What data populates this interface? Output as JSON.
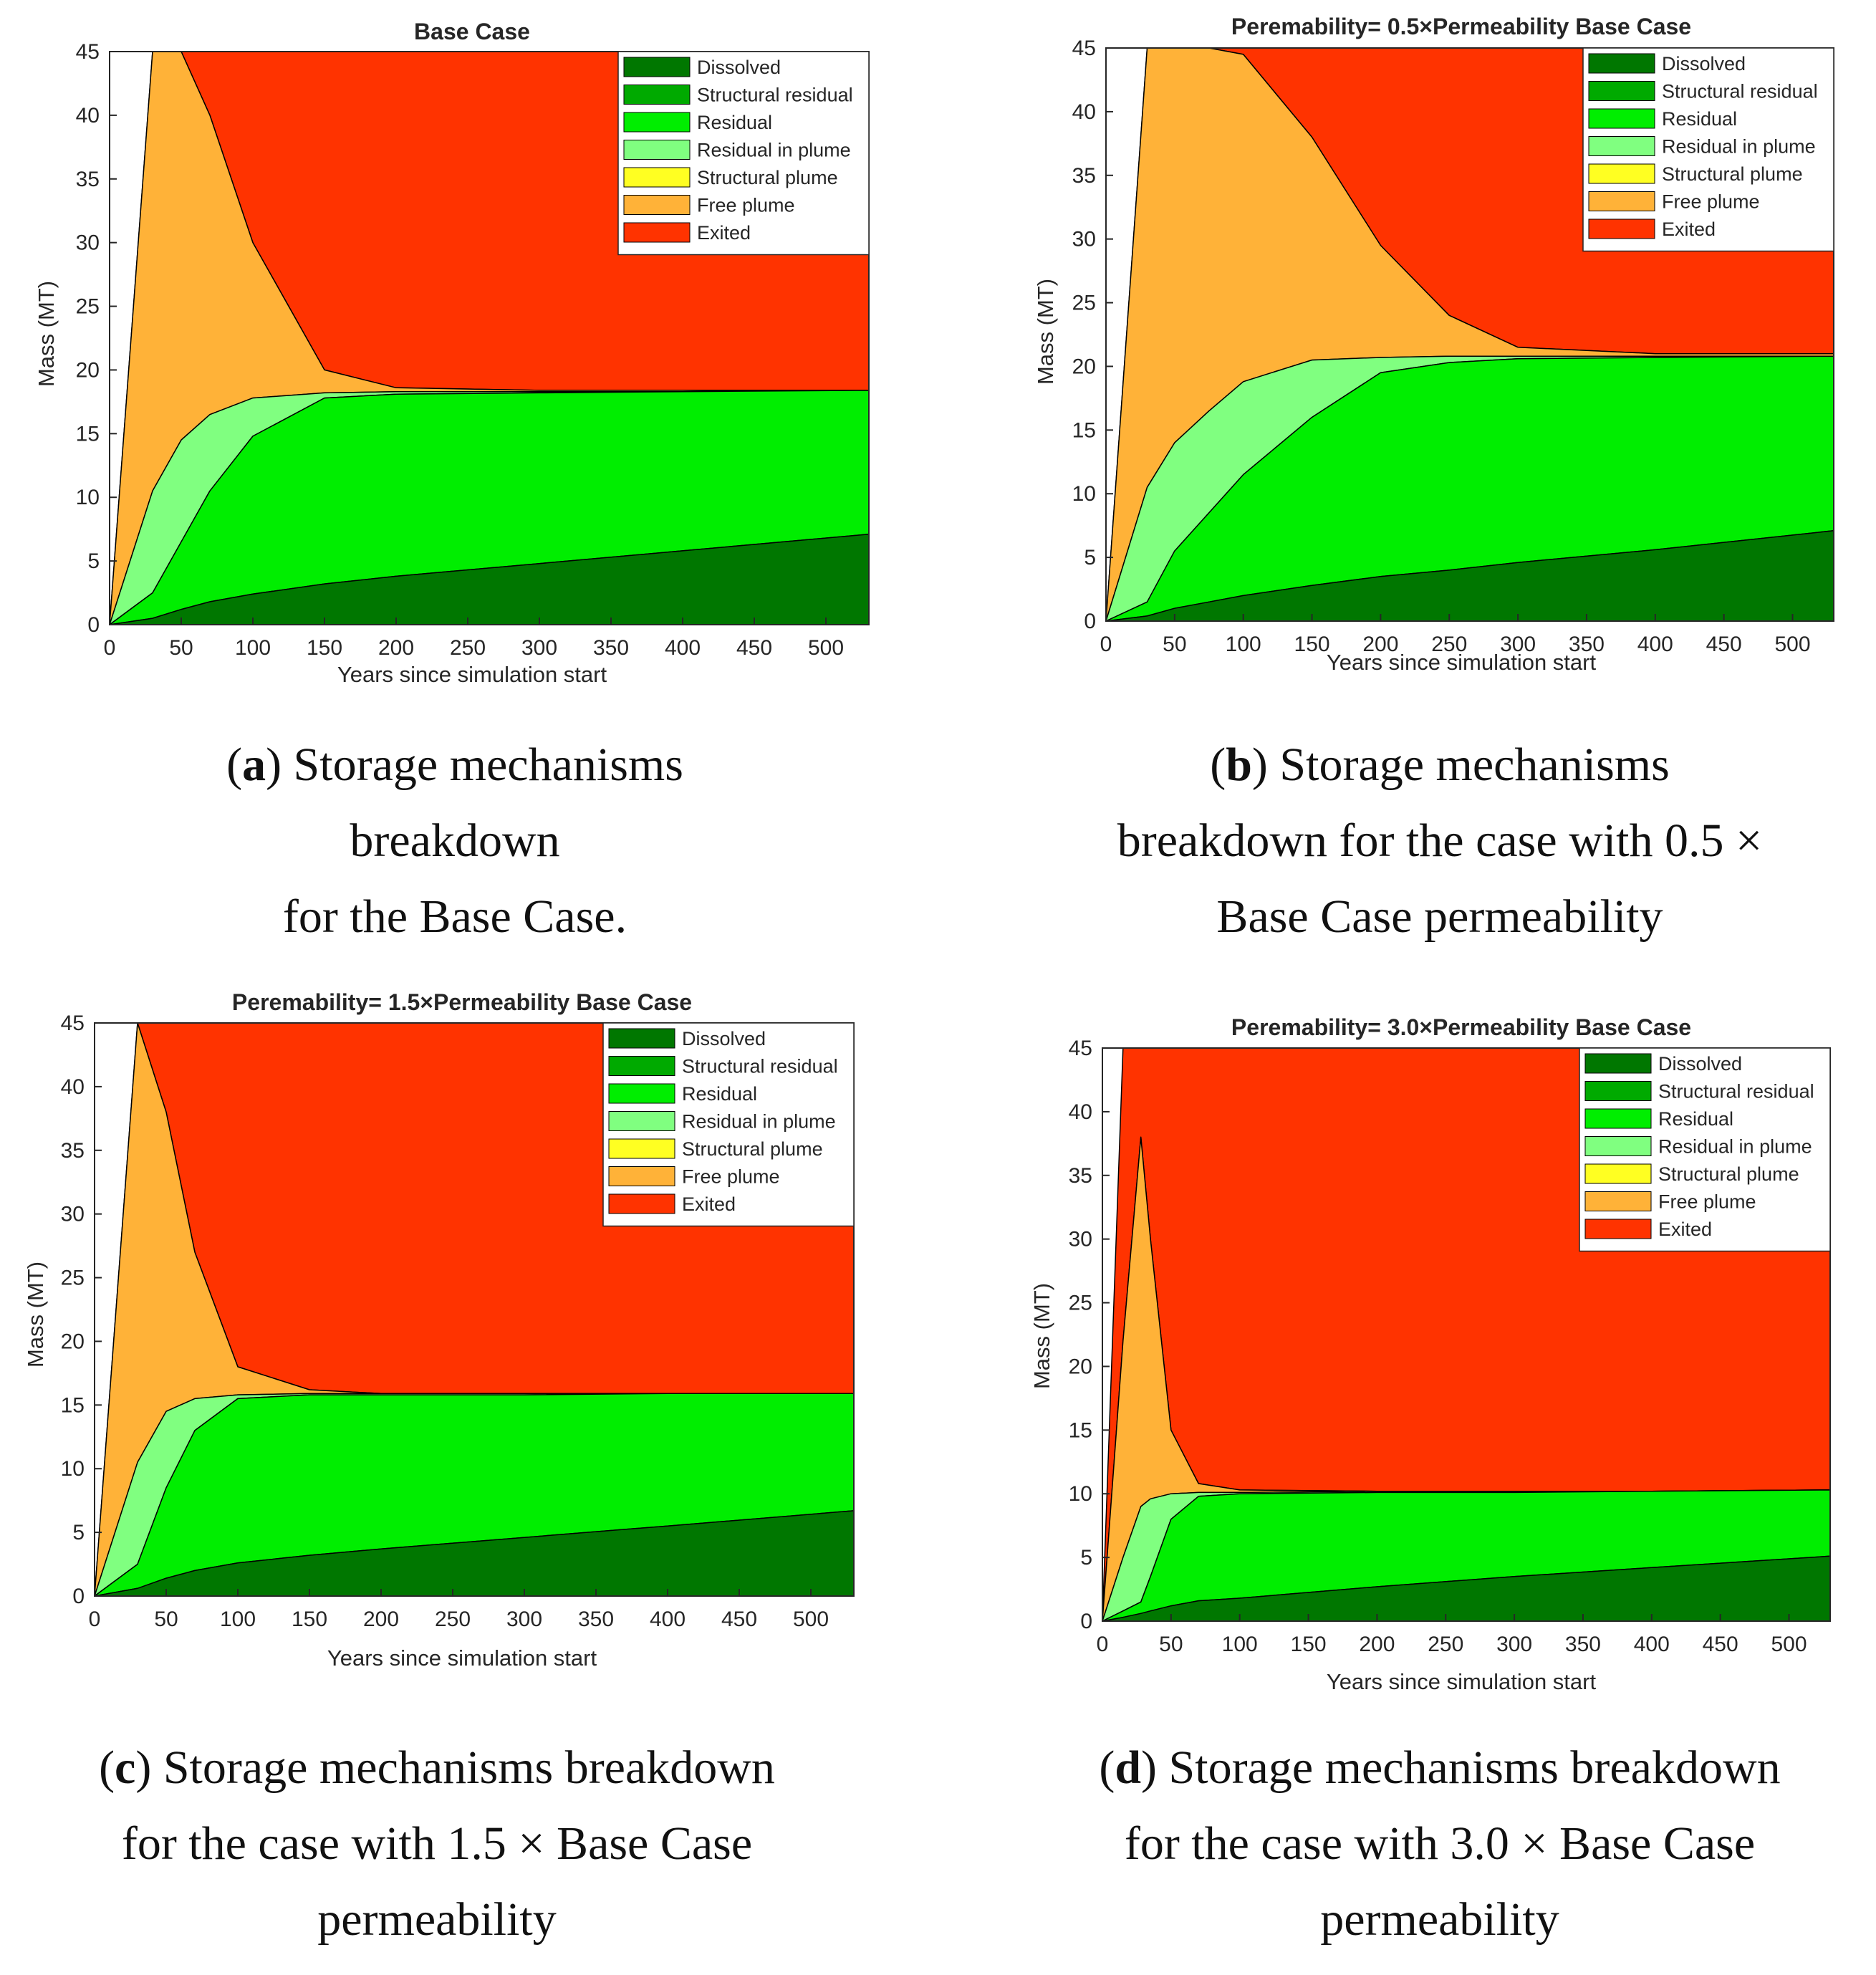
{
  "charts": [
    {
      "type": "area",
      "title": "Base Case",
      "xlabel": "Years since simulation start",
      "ylabel": "Mass (MT)",
      "xlim": [
        0,
        530
      ],
      "ylim": [
        0,
        45
      ],
      "xticks": [
        0,
        50,
        100,
        150,
        200,
        250,
        300,
        350,
        400,
        450,
        500
      ],
      "yticks": [
        0,
        5,
        10,
        15,
        20,
        25,
        30,
        35,
        40,
        45
      ],
      "legend": [
        "Dissolved",
        "Structural residual",
        "Residual",
        "Residual in plume",
        "Structural plume",
        "Free plume",
        "Exited"
      ],
      "legend_position": "top-right",
      "caption": {
        "label": "a",
        "text": ") Storage mechanisms\nbreakdown\nfor the Base Case."
      },
      "series": {
        "x": [
          0,
          30,
          50,
          70,
          100,
          150,
          200,
          300,
          400,
          530
        ],
        "dissolved": [
          0,
          0.5,
          1.2,
          1.8,
          2.4,
          3.2,
          3.8,
          4.8,
          5.8,
          7.1
        ],
        "residual_top": [
          0,
          2.5,
          6.5,
          10.5,
          14.8,
          17.8,
          18.1,
          18.2,
          18.3,
          18.4
        ],
        "plume_top": [
          0,
          10.5,
          14.5,
          16.5,
          17.8,
          18.2,
          18.3,
          18.3,
          18.3,
          18.4
        ],
        "free_top": [
          0,
          45,
          45,
          40,
          30,
          20,
          18.6,
          18.4,
          18.4,
          18.4
        ]
      }
    },
    {
      "type": "area",
      "title": "Peremability= 0.5×Permeability Base Case",
      "xlabel": "Years since simulation start",
      "ylabel": "Mass (MT)",
      "xlim": [
        0,
        530
      ],
      "ylim": [
        0,
        45
      ],
      "xticks": [
        0,
        50,
        100,
        150,
        200,
        250,
        300,
        350,
        400,
        450,
        500
      ],
      "yticks": [
        0,
        5,
        10,
        15,
        20,
        25,
        30,
        35,
        40,
        45
      ],
      "legend": [
        "Dissolved",
        "Structural residual",
        "Residual",
        "Residual in plume",
        "Structural plume",
        "Free plume",
        "Exited"
      ],
      "legend_position": "top-right",
      "caption": {
        "label": "b",
        "text": ") Storage mechanisms\nbreakdown for the case with 0.5 ×\nBase Case permeability"
      },
      "series": {
        "x": [
          0,
          30,
          50,
          75,
          100,
          150,
          200,
          250,
          300,
          400,
          530
        ],
        "dissolved": [
          0,
          0.4,
          1.0,
          1.5,
          2.0,
          2.8,
          3.5,
          4.0,
          4.6,
          5.6,
          7.1
        ],
        "residual_top": [
          0,
          1.5,
          5.5,
          8.5,
          11.5,
          16.0,
          19.5,
          20.3,
          20.6,
          20.7,
          20.8
        ],
        "plume_top": [
          0,
          10.5,
          14.0,
          16.5,
          18.8,
          20.5,
          20.7,
          20.8,
          20.8,
          20.8,
          20.8
        ],
        "free_top": [
          0,
          45,
          45,
          45,
          44.5,
          38.0,
          29.5,
          24.0,
          21.5,
          21.0,
          21.0
        ]
      }
    },
    {
      "type": "area",
      "title": "Peremability= 1.5×Permeability Base Case",
      "xlabel": "Years since simulation start",
      "ylabel": "Mass (MT)",
      "xlim": [
        0,
        530
      ],
      "ylim": [
        0,
        45
      ],
      "xticks": [
        0,
        50,
        100,
        150,
        200,
        250,
        300,
        350,
        400,
        450,
        500
      ],
      "yticks": [
        0,
        5,
        10,
        15,
        20,
        25,
        30,
        35,
        40,
        45
      ],
      "legend": [
        "Dissolved",
        "Structural residual",
        "Residual",
        "Residual in plume",
        "Structural plume",
        "Free plume",
        "Exited"
      ],
      "legend_position": "top-right",
      "caption": {
        "label": "c",
        "text": ") Storage mechanisms breakdown\nfor the case with 1.5 × Base Case\npermeability"
      },
      "series": {
        "x": [
          0,
          30,
          50,
          70,
          100,
          150,
          200,
          300,
          400,
          530
        ],
        "dissolved": [
          0,
          0.6,
          1.4,
          2.0,
          2.6,
          3.2,
          3.7,
          4.6,
          5.5,
          6.7
        ],
        "residual_top": [
          0,
          2.5,
          8.5,
          13.0,
          15.5,
          15.8,
          15.8,
          15.8,
          15.9,
          15.9
        ],
        "plume_top": [
          0,
          10.5,
          14.5,
          15.5,
          15.8,
          15.9,
          15.9,
          15.9,
          15.9,
          15.9
        ],
        "free_top": [
          0,
          45,
          38.0,
          27.0,
          18.0,
          16.2,
          15.9,
          15.9,
          15.9,
          15.9
        ]
      }
    },
    {
      "type": "area",
      "title": "Peremability= 3.0×Permeability Base Case",
      "xlabel": "Years since simulation start",
      "ylabel": "Mass (MT)",
      "xlim": [
        0,
        530
      ],
      "ylim": [
        0,
        45
      ],
      "xticks": [
        0,
        50,
        100,
        150,
        200,
        250,
        300,
        350,
        400,
        450,
        500
      ],
      "yticks": [
        0,
        5,
        10,
        15,
        20,
        25,
        30,
        35,
        40,
        45
      ],
      "legend": [
        "Dissolved",
        "Structural residual",
        "Residual",
        "Residual in plume",
        "Structural plume",
        "Free plume",
        "Exited"
      ],
      "legend_position": "top-right",
      "caption": {
        "label": "d",
        "text": ") Storage mechanisms breakdown\nfor the case with 3.0 × Base Case\npermeability"
      },
      "series": {
        "x": [
          0,
          15,
          28,
          35,
          50,
          70,
          100,
          200,
          300,
          400,
          530
        ],
        "dissolved": [
          0,
          0.3,
          0.6,
          0.8,
          1.2,
          1.6,
          1.8,
          2.7,
          3.5,
          4.2,
          5.1
        ],
        "residual_top": [
          0,
          0.8,
          1.5,
          3.5,
          8.0,
          9.8,
          10.0,
          10.1,
          10.1,
          10.2,
          10.3
        ],
        "plume_top": [
          0,
          5.0,
          9.0,
          9.6,
          10.0,
          10.1,
          10.1,
          10.2,
          10.2,
          10.2,
          10.3
        ],
        "free_top": [
          0,
          22.0,
          38.0,
          30.0,
          15.0,
          10.8,
          10.3,
          10.2,
          10.2,
          10.2,
          10.3
        ]
      }
    }
  ],
  "colors": {
    "dissolved": "#007700",
    "structural_residual": "#00aa00",
    "residual": "#00ee00",
    "residual_in_plume": "#80ff80",
    "structural_plume": "#ffff22",
    "free_plume": "#ffb238",
    "exited": "#ff3300"
  }
}
